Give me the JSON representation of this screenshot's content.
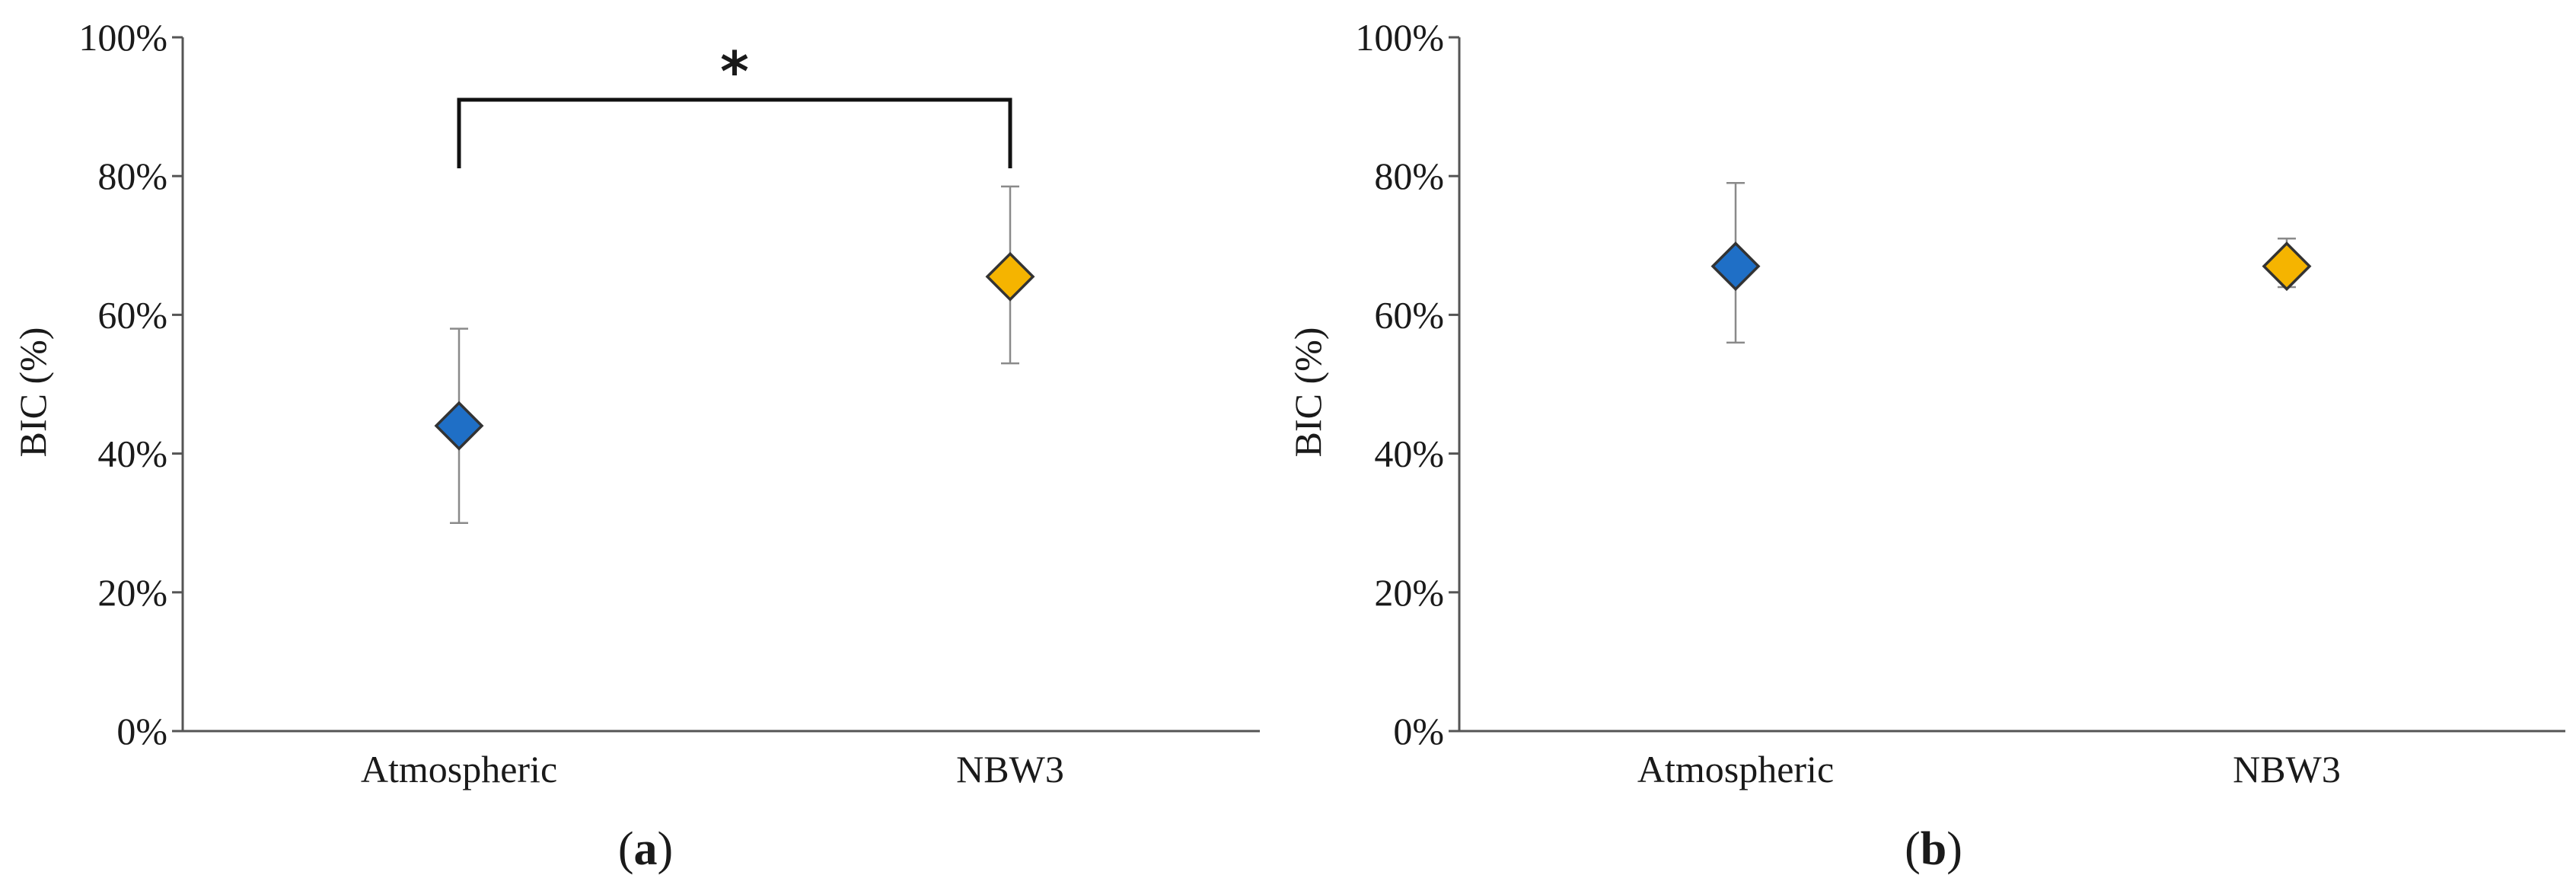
{
  "chart_data": [
    {
      "type": "scatter",
      "panel_label": "a",
      "ylabel": "BIC (%)",
      "ylim": [
        0,
        100
      ],
      "yticks": [
        0,
        20,
        40,
        60,
        80,
        100
      ],
      "ytick_labels": [
        "0%",
        "20%",
        "40%",
        "60%",
        "80%",
        "100%"
      ],
      "categories": [
        "Atmospheric",
        "NBW3"
      ],
      "points": [
        {
          "category": "Atmospheric",
          "value": 44,
          "err_low": 30,
          "err_high": 58,
          "color": "#1f6fc6"
        },
        {
          "category": "NBW3",
          "value": 65.5,
          "err_low": 53,
          "err_high": 78.5,
          "color": "#f5b400"
        }
      ],
      "annotations": [
        {
          "type": "significance",
          "between": [
            "Atmospheric",
            "NBW3"
          ],
          "text": "*",
          "bracket_y": 91
        }
      ],
      "grid": false,
      "legend": "none"
    },
    {
      "type": "scatter",
      "panel_label": "b",
      "ylabel": "BIC (%)",
      "ylim": [
        0,
        100
      ],
      "yticks": [
        0,
        20,
        40,
        60,
        80,
        100
      ],
      "ytick_labels": [
        "0%",
        "20%",
        "40%",
        "60%",
        "80%",
        "100%"
      ],
      "categories": [
        "Atmospheric",
        "NBW3"
      ],
      "points": [
        {
          "category": "Atmospheric",
          "value": 67,
          "err_low": 56,
          "err_high": 79,
          "color": "#1f6fc6"
        },
        {
          "category": "NBW3",
          "value": 67,
          "err_low": 64,
          "err_high": 71,
          "color": "#f5b400"
        }
      ],
      "annotations": [],
      "grid": false,
      "legend": "none"
    }
  ]
}
